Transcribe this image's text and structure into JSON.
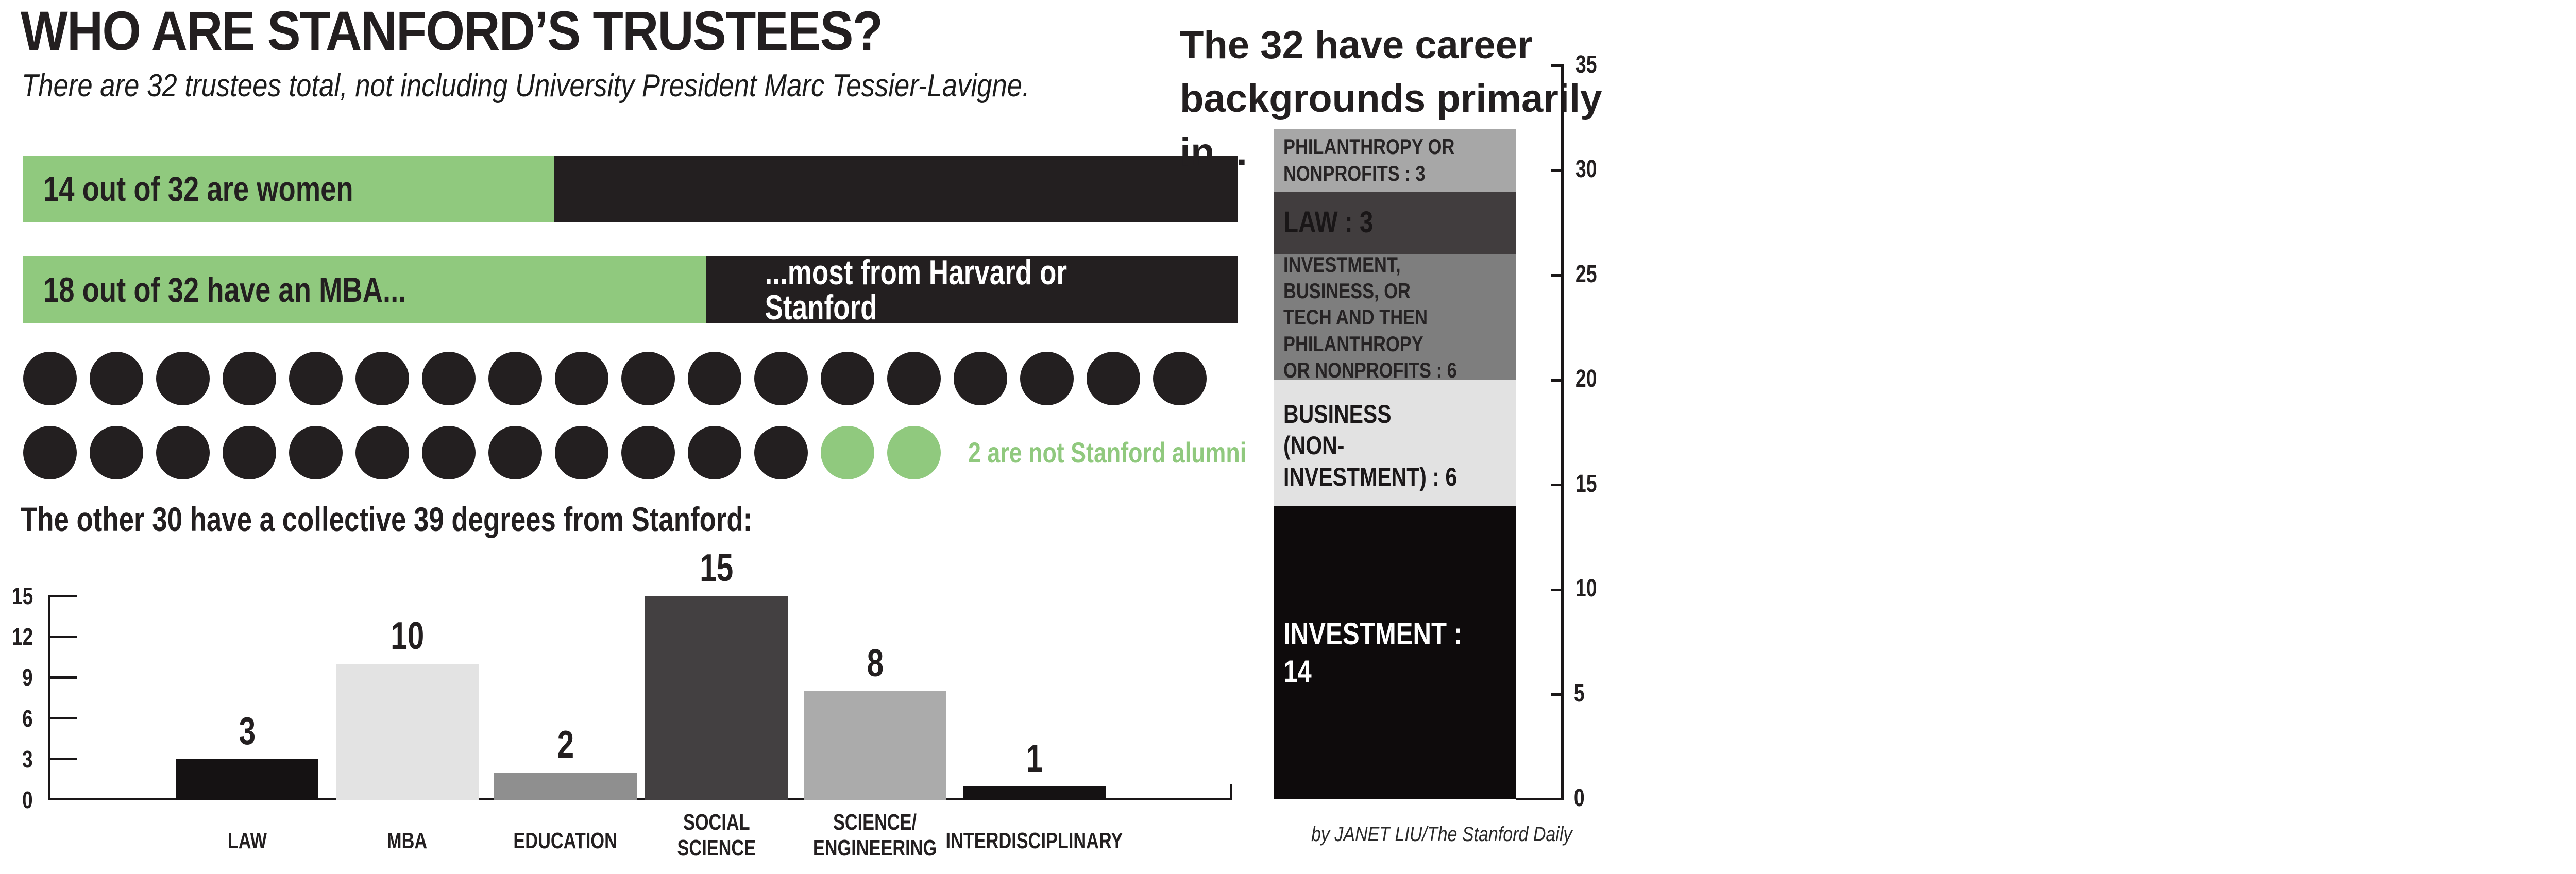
{
  "title": "WHO ARE STANFORD’S TRUSTEES?",
  "subtitle": "There are 32 trustees total, not including University President Marc Tessier-Lavigne.",
  "women_bar": {
    "label": "14 out of 32 are women",
    "value": 14,
    "total": 32
  },
  "mba_bar": {
    "label": "18 out of 32 have an MBA...",
    "right_label": "...most from Harvard or Stanford",
    "value": 18,
    "total": 32
  },
  "alumni_dots": {
    "row1_black": 18,
    "row2_black": 12,
    "row2_green": 2,
    "total": 32,
    "note": "2 are not Stanford alumni"
  },
  "degrees_heading": "The other 30 have a collective 39 degrees from Stanford:",
  "career_heading": "The 32 have career\nbackgrounds primarily in...",
  "credit": "by JANET LIU/The Stanford Daily",
  "colors": {
    "green": "#90c97e",
    "ink": "#231f20",
    "white": "#ffffff"
  },
  "chart_data": [
    {
      "type": "bar",
      "title": "The other 30 have a collective 39 degrees from Stanford:",
      "categories": [
        "LAW",
        "MBA",
        "EDUCATION",
        "SOCIAL\nSCIENCE",
        "SCIENCE/\nENGINEERING",
        "INTERDISCIPLINARY"
      ],
      "values": [
        3,
        10,
        2,
        15,
        8,
        1
      ],
      "bar_colors": [
        "#151213",
        "#e3e3e3",
        "#8f8f8f",
        "#434041",
        "#ababab",
        "#151213"
      ],
      "yticks": [
        0,
        3,
        6,
        9,
        12,
        15
      ],
      "ylim": [
        0,
        15
      ],
      "xlabel": "",
      "ylabel": "",
      "grid": false,
      "legend_position": "none"
    },
    {
      "type": "stacked-bar",
      "title": "The 32 have career backgrounds primarily in...",
      "total": 32,
      "segments": [
        {
          "label": "PHILANTHROPY OR\nNONPROFITS : 3",
          "value": 3,
          "color": "#a7a7a7",
          "text_color": "#272425"
        },
        {
          "label": "LAW : 3",
          "value": 3,
          "color": "#413d3e",
          "text_color": "#191617"
        },
        {
          "label": "INVESTMENT, BUSINESS, OR\nTECH AND THEN\nPHILANTHROPY\nOR NONPROFITS : 6",
          "value": 6,
          "color": "#7e7e7e",
          "text_color": "#262324"
        },
        {
          "label": "BUSINESS\n(NON-INVESTMENT) : 6",
          "value": 6,
          "color": "#e2e2e2",
          "text_color": "#1b1819"
        },
        {
          "label": "INVESTMENT : 14",
          "value": 14,
          "color": "#0e0b0c",
          "text_color": "#ffffff"
        }
      ],
      "yticks": [
        0,
        5,
        10,
        15,
        20,
        25,
        30,
        35
      ],
      "ylim": [
        0,
        35
      ],
      "grid": false,
      "legend_position": "none"
    }
  ]
}
